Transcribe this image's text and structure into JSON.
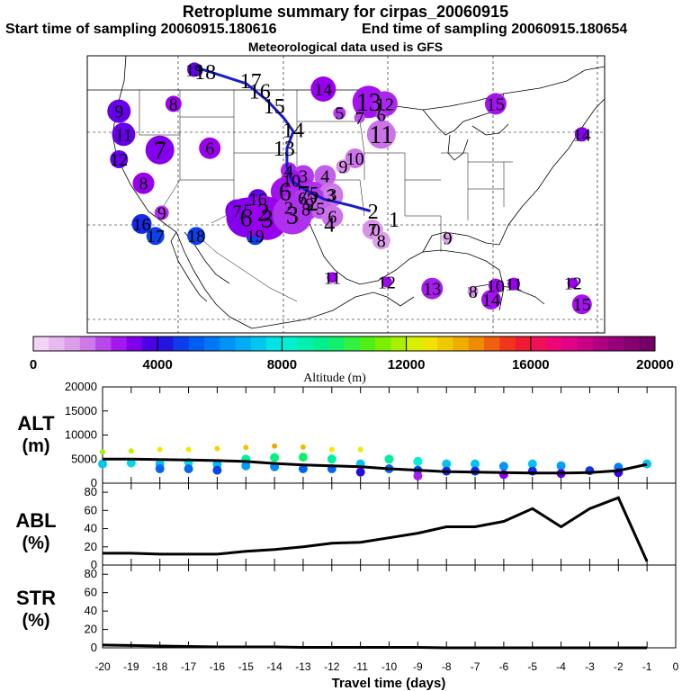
{
  "header": {
    "title": "Retroplume summary for cirpas_20060915",
    "start_label": "Start time of sampling 20060915.180616",
    "end_label": "End time of sampling 20060915.180654",
    "met_label": "Meteorological data used is GFS"
  },
  "map": {
    "trajectory_color": "#1a1ad0",
    "plume_labels": [
      {
        "t": "19",
        "lon": -116.2,
        "lat": 50.5,
        "alt": 3500,
        "r": 8
      },
      {
        "t": "18",
        "lon": -115.0,
        "lat": 50.3,
        "alt": 3800,
        "r": 0
      },
      {
        "t": "17",
        "lon": -110.0,
        "lat": 49.3,
        "alt": 0,
        "r": 0
      },
      {
        "t": "16",
        "lon": -109.0,
        "lat": 48.2,
        "alt": 0,
        "r": 0
      },
      {
        "t": "15",
        "lon": -107.4,
        "lat": 46.6,
        "alt": 0,
        "r": 0
      },
      {
        "t": "14",
        "lon": -105.3,
        "lat": 44.0,
        "alt": 0,
        "r": 0
      },
      {
        "t": "13",
        "lon": -106.3,
        "lat": 42.0,
        "alt": 0,
        "r": 0
      },
      {
        "t": "14",
        "lon": -102.0,
        "lat": 48.4,
        "alt": 3000,
        "r": 14
      },
      {
        "t": "13",
        "lon": -97.0,
        "lat": 47.0,
        "alt": 2800,
        "r": 18
      },
      {
        "t": "12",
        "lon": -95.2,
        "lat": 46.8,
        "alt": 2600,
        "r": 14
      },
      {
        "t": "5",
        "lon": -100.2,
        "lat": 45.8,
        "alt": 2400,
        "r": 7
      },
      {
        "t": "7",
        "lon": -98.0,
        "lat": 45.3,
        "alt": 2200,
        "r": 6
      },
      {
        "t": "6",
        "lon": -95.6,
        "lat": 45.6,
        "alt": 2400,
        "r": 6
      },
      {
        "t": "11",
        "lon": -95.6,
        "lat": 43.5,
        "alt": 1800,
        "r": 16
      },
      {
        "t": "15",
        "lon": -83.0,
        "lat": 46.8,
        "alt": 2800,
        "r": 12
      },
      {
        "t": "14",
        "lon": -73.5,
        "lat": 43.5,
        "alt": 3200,
        "r": 8
      },
      {
        "t": "9",
        "lon": -124.5,
        "lat": 46.0,
        "alt": 3500,
        "r": 13
      },
      {
        "t": "8",
        "lon": -118.5,
        "lat": 46.8,
        "alt": 3000,
        "r": 9
      },
      {
        "t": "11",
        "lon": -124.0,
        "lat": 43.5,
        "alt": 3500,
        "r": 13
      },
      {
        "t": "7",
        "lon": -120.0,
        "lat": 41.8,
        "alt": 3200,
        "r": 16
      },
      {
        "t": "6",
        "lon": -114.5,
        "lat": 42.0,
        "alt": 3000,
        "r": 12
      },
      {
        "t": "12",
        "lon": -124.5,
        "lat": 40.8,
        "alt": 3500,
        "r": 10
      },
      {
        "t": "8",
        "lon": -121.8,
        "lat": 38.2,
        "alt": 3000,
        "r": 12
      },
      {
        "t": "9",
        "lon": -119.8,
        "lat": 35.0,
        "alt": 2500,
        "r": 8
      },
      {
        "t": "16",
        "lon": -122.0,
        "lat": 33.8,
        "alt": 4500,
        "r": 11
      },
      {
        "t": "17",
        "lon": -120.5,
        "lat": 32.5,
        "alt": 4800,
        "r": 10
      },
      {
        "t": "18",
        "lon": -116.0,
        "lat": 32.5,
        "alt": 4800,
        "r": 10
      },
      {
        "t": "19",
        "lon": -109.5,
        "lat": 32.5,
        "alt": 4800,
        "r": 10
      },
      {
        "t": "10",
        "lon": -98.5,
        "lat": 40.9,
        "alt": 1800,
        "r": 11
      },
      {
        "t": "9",
        "lon": -99.8,
        "lat": 40.0,
        "alt": 1500,
        "r": 8
      },
      {
        "t": "4",
        "lon": -105.8,
        "lat": 39.6,
        "alt": 2600,
        "r": 9
      },
      {
        "t": "3",
        "lon": -104.2,
        "lat": 39.0,
        "alt": 2400,
        "r": 12
      },
      {
        "t": "10",
        "lon": -105.5,
        "lat": 38.5,
        "alt": 2800,
        "r": 12
      },
      {
        "t": "4",
        "lon": -101.8,
        "lat": 39.0,
        "alt": 2000,
        "r": 12
      },
      {
        "t": "6",
        "lon": -106.2,
        "lat": 37.3,
        "alt": 2800,
        "r": 16
      },
      {
        "t": "7",
        "lon": -104.2,
        "lat": 37.0,
        "alt": 2600,
        "r": 18
      },
      {
        "t": "5",
        "lon": -103.0,
        "lat": 37.2,
        "alt": 2500,
        "r": 12
      },
      {
        "t": "3",
        "lon": -101.2,
        "lat": 36.9,
        "alt": 1800,
        "r": 14
      },
      {
        "t": "2",
        "lon": -103.2,
        "lat": 36.2,
        "alt": 2400,
        "r": 16
      },
      {
        "t": "6",
        "lon": -104.3,
        "lat": 36.6,
        "alt": 2400,
        "r": 10
      },
      {
        "t": "9",
        "lon": -103.5,
        "lat": 36.0,
        "alt": 2200,
        "r": 12
      },
      {
        "t": "2",
        "lon": -105.8,
        "lat": 35.6,
        "alt": 2600,
        "r": 12
      },
      {
        "t": "8",
        "lon": -103.9,
        "lat": 35.4,
        "alt": 2400,
        "r": 13
      },
      {
        "t": "5",
        "lon": -102.3,
        "lat": 35.5,
        "alt": 2000,
        "r": 12
      },
      {
        "t": "16",
        "lon": -109.2,
        "lat": 36.5,
        "alt": 3500,
        "r": 11
      },
      {
        "t": "7",
        "lon": -111.5,
        "lat": 35.2,
        "alt": 3300,
        "r": 13
      },
      {
        "t": "5",
        "lon": -110.3,
        "lat": 35.3,
        "alt": 3100,
        "r": 14
      },
      {
        "t": "2",
        "lon": -108.6,
        "lat": 35.1,
        "alt": 2900,
        "r": 18
      },
      {
        "t": "6",
        "lon": -110.5,
        "lat": 34.5,
        "alt": 3200,
        "r": 22
      },
      {
        "t": "3",
        "lon": -108.2,
        "lat": 34.4,
        "alt": 3000,
        "r": 24
      },
      {
        "t": "3",
        "lon": -105.4,
        "lat": 34.8,
        "alt": 2500,
        "r": 22
      },
      {
        "t": "6",
        "lon": -101.0,
        "lat": 34.6,
        "alt": 1800,
        "r": 12
      },
      {
        "t": "4",
        "lon": -101.3,
        "lat": 33.8,
        "alt": 1500,
        "r": 0
      },
      {
        "t": "3",
        "lon": -101.0,
        "lat": 37.0,
        "alt": 1700,
        "r": 10
      },
      {
        "t": "7",
        "lon": -96.6,
        "lat": 33.2,
        "alt": 1500,
        "r": 11
      },
      {
        "t": "0",
        "lon": -96.2,
        "lat": 33.2,
        "alt": 1400,
        "r": 8
      },
      {
        "t": "8",
        "lon": -95.6,
        "lat": 32.0,
        "alt": 1200,
        "r": 10
      },
      {
        "t": "2",
        "lon": -96.5,
        "lat": 35.2,
        "alt": 0,
        "r": 0
      },
      {
        "t": "1",
        "lon": -94.2,
        "lat": 34.3,
        "alt": 0,
        "r": 0
      },
      {
        "t": "9",
        "lon": -88.3,
        "lat": 32.3,
        "alt": 1200,
        "r": 6
      },
      {
        "t": "11",
        "lon": -101.0,
        "lat": 28.0,
        "alt": 3000,
        "r": 6
      },
      {
        "t": "12",
        "lon": -95.0,
        "lat": 27.5,
        "alt": 2900,
        "r": 6
      },
      {
        "t": "13",
        "lon": -90.0,
        "lat": 26.8,
        "alt": 2700,
        "r": 12
      },
      {
        "t": "8",
        "lon": -85.5,
        "lat": 26.5,
        "alt": 1500,
        "r": 6
      },
      {
        "t": "14",
        "lon": -83.5,
        "lat": 25.6,
        "alt": 2800,
        "r": 11
      },
      {
        "t": "10",
        "lon": -83.0,
        "lat": 27.1,
        "alt": 2900,
        "r": 8
      },
      {
        "t": "11",
        "lon": -81.0,
        "lat": 27.3,
        "alt": 3000,
        "r": 7
      },
      {
        "t": "12",
        "lon": -74.5,
        "lat": 27.4,
        "alt": 3000,
        "r": 6
      },
      {
        "t": "15",
        "lon": -73.5,
        "lat": 25.1,
        "alt": 2800,
        "r": 11
      }
    ]
  },
  "colorbar": {
    "ticks": [
      "0",
      "4000",
      "8000",
      "12000",
      "16000",
      "20000"
    ],
    "label": "Altitude (m)"
  },
  "panels": {
    "alt": {
      "label1": "ALT",
      "label2": "(m)",
      "ticks": [
        "0",
        "5000",
        "10000",
        "15000",
        "20000"
      ]
    },
    "abl": {
      "label1": "ABL",
      "label2": "(%)",
      "ticks": [
        "0",
        "20",
        "40",
        "60",
        "80"
      ]
    },
    "str": {
      "label1": "STR",
      "label2": "(%)",
      "ticks": [
        "0",
        "20",
        "40",
        "60",
        "80"
      ]
    },
    "xticks": [
      "-20",
      "-19",
      "-18",
      "-17",
      "-16",
      "-15",
      "-14",
      "-13",
      "-12",
      "-11",
      "-10",
      "-9",
      "-8",
      "-7",
      "-6",
      "-5",
      "-4",
      "-3",
      "-2",
      "-1",
      "0"
    ],
    "xlabel": "Travel time (days)"
  },
  "chart_data": {
    "type": "line",
    "title": "Retroplume summary for cirpas_20060915",
    "xlabel": "Travel time (days)",
    "xlim": [
      -20,
      0
    ],
    "series": [
      {
        "name": "ALT mean (m)",
        "ylim": [
          0,
          20000
        ],
        "x": [
          -20,
          -19,
          -18,
          -17,
          -16,
          -15,
          -14,
          -13,
          -12,
          -11,
          -10,
          -9,
          -8,
          -7,
          -6,
          -5,
          -4,
          -3,
          -2,
          -1
        ],
        "values": [
          5000,
          5000,
          4900,
          4800,
          4700,
          4500,
          4100,
          3800,
          3600,
          3400,
          3000,
          2700,
          2400,
          2300,
          2200,
          2100,
          2100,
          2200,
          2600,
          3900
        ]
      },
      {
        "name": "ALT cluster (m)",
        "ylim": [
          0,
          20000
        ],
        "points": [
          [
            -20,
            6500
          ],
          [
            -20,
            4000
          ],
          [
            -19,
            6700
          ],
          [
            -19,
            4200
          ],
          [
            -18,
            7000
          ],
          [
            -18,
            4000
          ],
          [
            -18,
            3000
          ],
          [
            -17,
            7000
          ],
          [
            -17,
            4300
          ],
          [
            -17,
            3000
          ],
          [
            -16,
            7200
          ],
          [
            -16,
            3900
          ],
          [
            -16,
            2700
          ],
          [
            -15,
            7400
          ],
          [
            -15,
            5000
          ],
          [
            -15,
            3600
          ],
          [
            -14,
            7700
          ],
          [
            -14,
            5300
          ],
          [
            -14,
            3400
          ],
          [
            -13,
            7500
          ],
          [
            -13,
            5400
          ],
          [
            -13,
            3000
          ],
          [
            -12,
            7000
          ],
          [
            -12,
            5000
          ],
          [
            -12,
            3000
          ],
          [
            -11,
            7000
          ],
          [
            -11,
            4000
          ],
          [
            -11,
            2300
          ],
          [
            -10,
            5000
          ],
          [
            -10,
            3000
          ],
          [
            -9,
            4500
          ],
          [
            -9,
            2700
          ],
          [
            -9,
            1500
          ],
          [
            -8,
            4000
          ],
          [
            -8,
            2500
          ],
          [
            -7,
            4000
          ],
          [
            -7,
            2500
          ],
          [
            -6,
            3500
          ],
          [
            -6,
            1800
          ],
          [
            -5,
            4000
          ],
          [
            -5,
            2500
          ],
          [
            -4,
            3600
          ],
          [
            -4,
            2000
          ],
          [
            -3,
            2600
          ],
          [
            -2,
            3300
          ],
          [
            -2,
            2200
          ],
          [
            -1,
            4000
          ]
        ]
      },
      {
        "name": "ABL (%)",
        "ylim": [
          0,
          90
        ],
        "x": [
          -20,
          -19,
          -18,
          -17,
          -16,
          -15,
          -14,
          -13,
          -12,
          -11,
          -10,
          -9,
          -8,
          -7,
          -6,
          -5,
          -4,
          -3,
          -2,
          -1
        ],
        "values": [
          13,
          13,
          12,
          12,
          12,
          15,
          17,
          20,
          24,
          25,
          30,
          35,
          42,
          42,
          48,
          62,
          42,
          62,
          74,
          4
        ]
      },
      {
        "name": "STR (%)",
        "ylim": [
          0,
          90
        ],
        "x": [
          -20,
          -19,
          -18,
          -17,
          -16,
          -15,
          -14,
          -13,
          -12,
          -11,
          -10,
          -9,
          -8,
          -7,
          -6,
          -5,
          -4,
          -3,
          -2,
          -1
        ],
        "values": [
          3,
          2.5,
          2,
          1.5,
          1,
          1,
          1,
          0.5,
          0.5,
          0.5,
          0.5,
          0.5,
          0,
          0,
          0,
          0,
          0,
          0,
          0,
          0
        ]
      }
    ]
  }
}
